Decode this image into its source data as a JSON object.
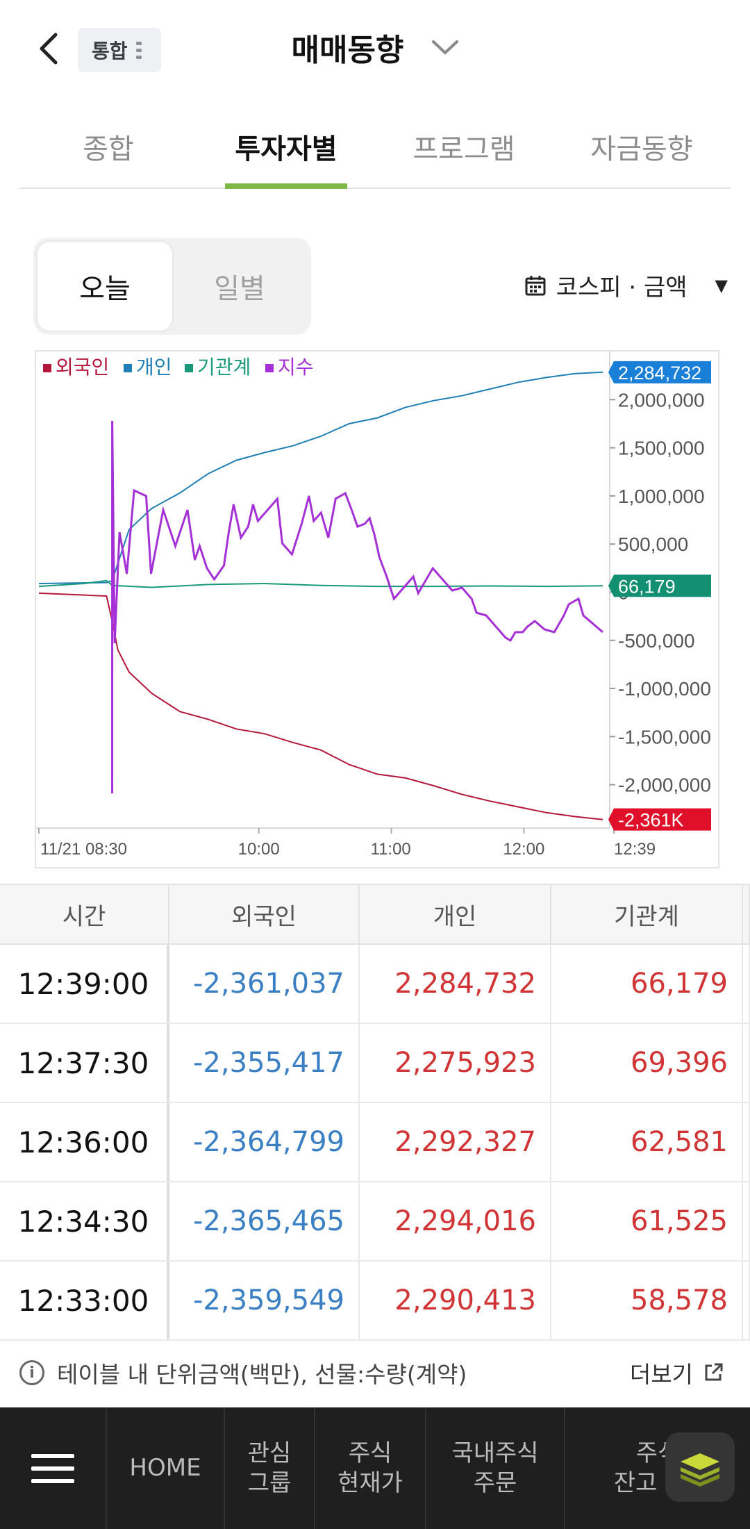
{
  "header": {
    "badge": "통합",
    "title": "매매동향"
  },
  "tabs": [
    {
      "label": "종합",
      "active": false
    },
    {
      "label": "투자자별",
      "active": true
    },
    {
      "label": "프로그램",
      "active": false
    },
    {
      "label": "자금동향",
      "active": false
    }
  ],
  "segment": {
    "today": "오늘",
    "daily": "일별"
  },
  "market_selector": "코스피 · 금액",
  "chart_data": {
    "type": "line",
    "legend": [
      "외국인",
      "개인",
      "기관계",
      "지수"
    ],
    "colors": {
      "외국인": "#b5173a",
      "개인": "#1f7fb5",
      "기관계": "#17997a",
      "지수": "#a531d6"
    },
    "y_ticks": [
      "2,000,000",
      "1,500,000",
      "1,000,000",
      "500,000",
      "0",
      "-500,000",
      "-1,000,000",
      "-1,500,000",
      "-2,000,000"
    ],
    "ylim": [
      -2450000,
      2500000
    ],
    "x_ticks": [
      "11/21 08:30",
      "10:00",
      "11:00",
      "12:00",
      "12:39"
    ],
    "end_labels": {
      "개인": "2,284,732",
      "기관계": "66,179",
      "외국인": "-2,361K"
    },
    "series": [
      {
        "name": "개인",
        "x": [
          0,
          0.12,
          0.13,
          0.14,
          0.16,
          0.2,
          0.25,
          0.3,
          0.35,
          0.4,
          0.45,
          0.5,
          0.55,
          0.6,
          0.65,
          0.7,
          0.75,
          0.8,
          0.85,
          0.9,
          0.95,
          1.0
        ],
        "values": [
          90000,
          100000,
          120000,
          300000,
          650000,
          870000,
          1030000,
          1230000,
          1370000,
          1450000,
          1520000,
          1620000,
          1750000,
          1810000,
          1920000,
          1990000,
          2040000,
          2110000,
          2180000,
          2230000,
          2270000,
          2284732
        ]
      },
      {
        "name": "기관계",
        "x": [
          0,
          0.08,
          0.12,
          0.13,
          0.2,
          0.3,
          0.4,
          0.5,
          0.6,
          0.7,
          0.8,
          0.9,
          1.0
        ],
        "values": [
          60000,
          90000,
          120000,
          70000,
          50000,
          80000,
          90000,
          70000,
          60000,
          60000,
          65000,
          60000,
          66179
        ]
      },
      {
        "name": "외국인",
        "x": [
          0,
          0.12,
          0.13,
          0.14,
          0.16,
          0.2,
          0.25,
          0.3,
          0.35,
          0.4,
          0.45,
          0.5,
          0.55,
          0.6,
          0.65,
          0.7,
          0.75,
          0.8,
          0.85,
          0.9,
          0.95,
          1.0
        ],
        "values": [
          -10000,
          -40000,
          -300000,
          -600000,
          -830000,
          -1050000,
          -1240000,
          -1320000,
          -1420000,
          -1470000,
          -1560000,
          -1640000,
          -1790000,
          -1890000,
          -1930000,
          -2010000,
          -2100000,
          -2170000,
          -2230000,
          -2290000,
          -2330000,
          -2361037
        ]
      }
    ]
  },
  "table": {
    "headers": [
      "시간",
      "외국인",
      "개인",
      "기관계"
    ],
    "rows": [
      [
        "12:39:00",
        "-2,361,037",
        "2,284,732",
        "66,179"
      ],
      [
        "12:37:30",
        "-2,355,417",
        "2,275,923",
        "69,396"
      ],
      [
        "12:36:00",
        "-2,364,799",
        "2,292,327",
        "62,581"
      ],
      [
        "12:34:30",
        "-2,365,465",
        "2,294,016",
        "61,525"
      ],
      [
        "12:33:00",
        "-2,359,549",
        "2,290,413",
        "58,578"
      ]
    ]
  },
  "note": "테이블 내 단위금액(백만), 선물:수량(계약)",
  "more_label": "더보기",
  "bottom_nav": [
    "HOME",
    "관심\n그룹",
    "주식\n현재가",
    "국내주식\n주문",
    "주식\n잔고 · 손"
  ]
}
